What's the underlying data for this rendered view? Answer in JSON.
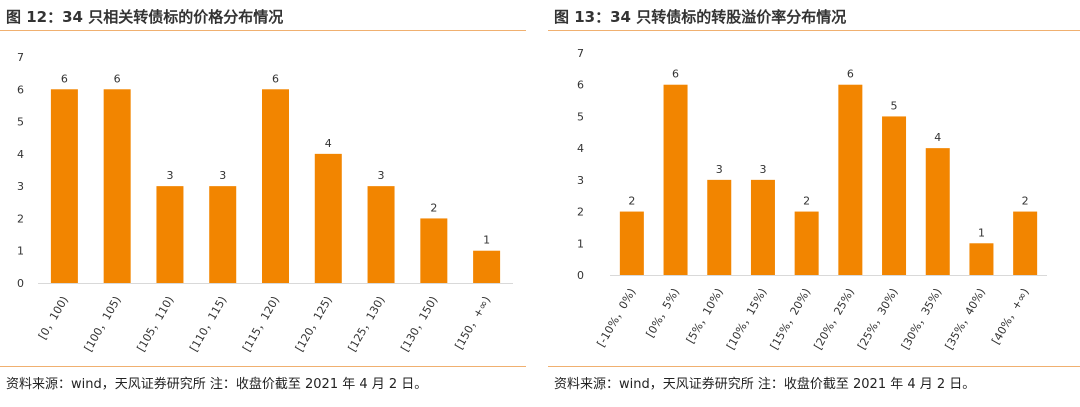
{
  "panels": [
    {
      "title": "图 12：34 只相关转债标的价格分布情况",
      "source": "资料来源：wind，天风证券研究所    注：收盘价截至 2021 年 4 月 2 日。"
    },
    {
      "title": "图 13：34 只转债标的转股溢价率分布情况",
      "source": "资料来源：wind，天风证券研究所    注：收盘价截至 2021 年 4 月 2 日。"
    }
  ],
  "chart_data": [
    {
      "type": "bar",
      "categories": [
        "[0，100)",
        "[100，105)",
        "[105，110)",
        "[110，115)",
        "[115，120)",
        "[120，125)",
        "[125，130)",
        "[130，150)",
        "[150，+∞)"
      ],
      "values": [
        6,
        6,
        3,
        3,
        6,
        4,
        3,
        2,
        1
      ],
      "yticks": [
        "0",
        "1",
        "2",
        "3",
        "4",
        "5",
        "6",
        "7"
      ],
      "ylim": [
        0,
        7
      ],
      "color": "#f28500",
      "data_labels": true,
      "grid": false
    },
    {
      "type": "bar",
      "categories": [
        "[-10%，0%)",
        "[0%，5%)",
        "[5%，10%)",
        "[10%，15%)",
        "[15%，20%)",
        "[20%，25%)",
        "[25%，30%)",
        "[30%，35%)",
        "[35%，40%)",
        "[40%，+∞)"
      ],
      "values": [
        2,
        6,
        3,
        3,
        2,
        6,
        5,
        4,
        1,
        2
      ],
      "yticks": [
        "0",
        "1",
        "2",
        "3",
        "4",
        "5",
        "6",
        "7"
      ],
      "ylim": [
        0,
        7
      ],
      "color": "#f28500",
      "data_labels": true,
      "grid": false
    }
  ]
}
